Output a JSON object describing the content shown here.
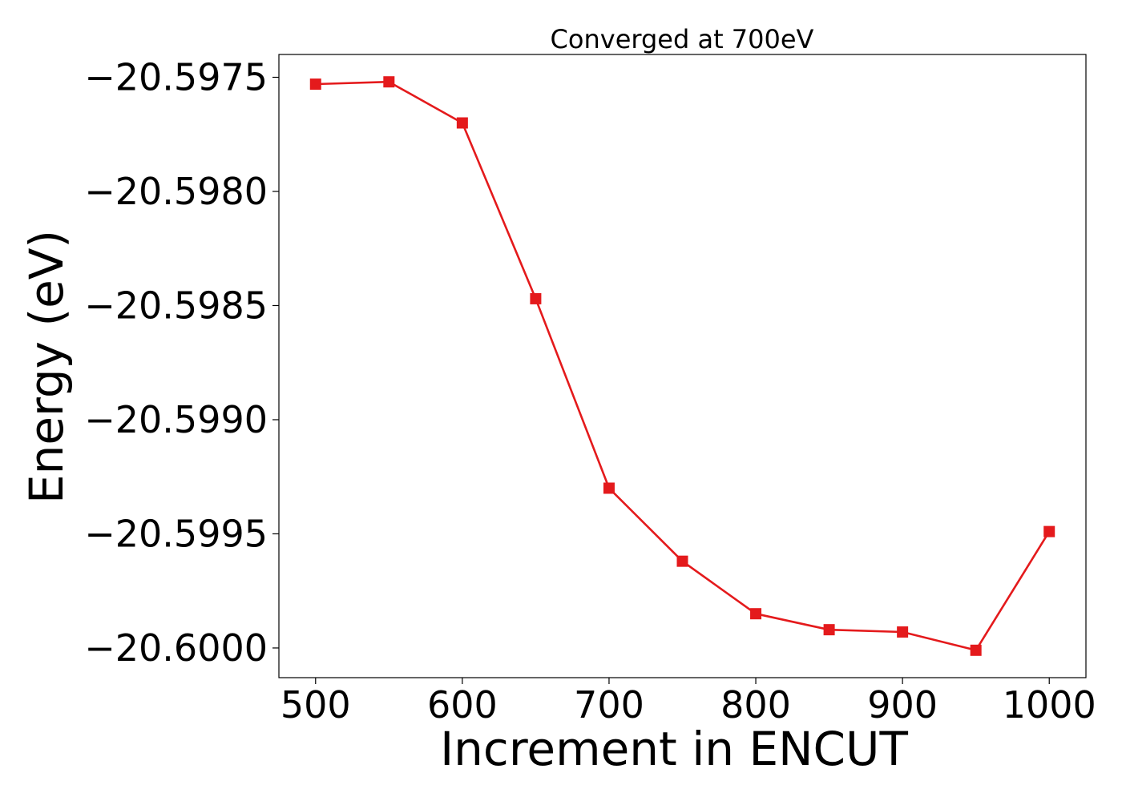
{
  "chart_data": {
    "type": "line",
    "title": "Converged at 700eV",
    "xlabel": "Increment in ENCUT",
    "ylabel": "Energy (eV)",
    "x": [
      500,
      550,
      600,
      650,
      700,
      750,
      800,
      850,
      900,
      950,
      1000
    ],
    "series": [
      {
        "values": [
          -20.59753,
          -20.59752,
          -20.5977,
          -20.59847,
          -20.5993,
          -20.59962,
          -20.59985,
          -20.59992,
          -20.59993,
          -20.60001,
          -20.59949
        ],
        "color": "#e41a1c",
        "marker": "square"
      }
    ],
    "xlim": [
      475,
      1025
    ],
    "ylim": [
      -20.60013,
      -20.5974
    ],
    "x_ticks": [
      500,
      600,
      700,
      800,
      900,
      1000
    ],
    "x_tick_labels": [
      "500",
      "600",
      "700",
      "800",
      "900",
      "1000"
    ],
    "y_ticks": [
      -20.5975,
      -20.598,
      -20.5985,
      -20.599,
      -20.5995,
      -20.6
    ],
    "y_tick_labels": [
      "−20.5975",
      "−20.5980",
      "−20.5985",
      "−20.5990",
      "−20.5995",
      "−20.6000"
    ],
    "grid": false,
    "legend": "none"
  }
}
